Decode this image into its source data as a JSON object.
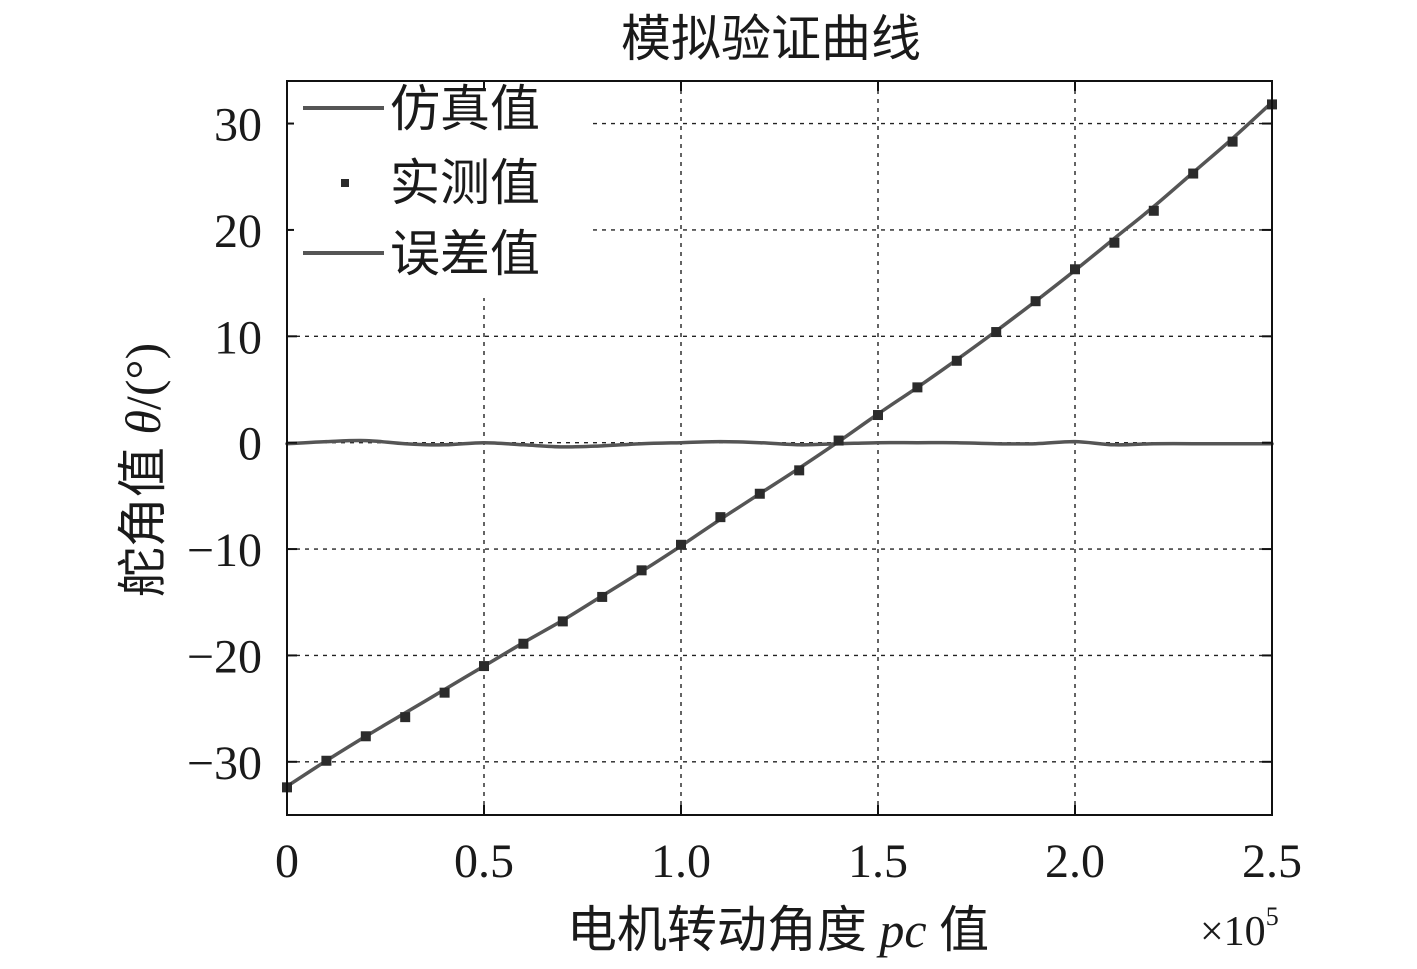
{
  "chart_data": {
    "type": "line",
    "title": "模拟验证曲线",
    "xlabel": {
      "prefix": "电机转动角度 ",
      "italic": "pc",
      "suffix": " 值"
    },
    "ylabel": {
      "prefix": "舵角值 ",
      "italic": "θ",
      "suffix": "/(°)"
    },
    "x_multiplier": {
      "base": "×10",
      "exponent": "5"
    },
    "xlim": [
      0,
      2.5
    ],
    "ylim": [
      -35,
      34
    ],
    "x_ticks": [
      0,
      0.5,
      1.0,
      1.5,
      2.0,
      2.5
    ],
    "x_tick_labels": [
      "0",
      "0.5",
      "1.0",
      "1.5",
      "2.0",
      "2.5"
    ],
    "y_ticks": [
      -30,
      -20,
      -10,
      0,
      10,
      20,
      30
    ],
    "y_tick_labels": [
      "−30",
      "−20",
      "−10",
      "0",
      "10",
      "20",
      "30"
    ],
    "grid": true,
    "legend_position": "top-left",
    "legend": [
      "仿真值",
      "实测值",
      "误差值"
    ],
    "colors": {
      "simulation": "#555555",
      "measured": "#2b2b2b",
      "error": "#555555",
      "grid": "#222222",
      "axis": "#111111"
    },
    "series": [
      {
        "name": "仿真值",
        "style": "line",
        "x": [
          0,
          0.1,
          0.2,
          0.3,
          0.4,
          0.5,
          0.6,
          0.7,
          0.8,
          0.9,
          1.0,
          1.1,
          1.2,
          1.3,
          1.4,
          1.5,
          1.6,
          1.7,
          1.8,
          1.9,
          2.0,
          2.1,
          2.2,
          2.3,
          2.4,
          2.5
        ],
        "y": [
          -32.3,
          -29.9,
          -27.6,
          -25.4,
          -23.2,
          -21.0,
          -18.8,
          -16.7,
          -14.4,
          -12.1,
          -9.7,
          -7.2,
          -4.8,
          -2.4,
          0.1,
          2.7,
          5.2,
          7.8,
          10.5,
          13.3,
          16.2,
          19.2,
          22.2,
          25.4,
          28.6,
          32.0
        ]
      },
      {
        "name": "实测值",
        "style": "markers",
        "x": [
          0,
          0.1,
          0.2,
          0.3,
          0.4,
          0.5,
          0.6,
          0.7,
          0.8,
          0.9,
          1.0,
          1.1,
          1.2,
          1.3,
          1.4,
          1.5,
          1.6,
          1.7,
          1.8,
          1.9,
          2.0,
          2.1,
          2.2,
          2.3,
          2.4,
          2.5
        ],
        "y": [
          -32.4,
          -29.9,
          -27.6,
          -25.8,
          -23.5,
          -21.0,
          -18.9,
          -16.8,
          -14.5,
          -12.0,
          -9.6,
          -7.0,
          -4.8,
          -2.6,
          0.2,
          2.6,
          5.2,
          7.7,
          10.4,
          13.3,
          16.3,
          18.8,
          21.8,
          25.3,
          28.3,
          31.8
        ]
      },
      {
        "name": "误差值",
        "style": "line",
        "x": [
          0,
          0.1,
          0.2,
          0.3,
          0.4,
          0.5,
          0.6,
          0.7,
          0.8,
          0.9,
          1.0,
          1.1,
          1.2,
          1.3,
          1.4,
          1.5,
          1.6,
          1.7,
          1.8,
          1.9,
          2.0,
          2.1,
          2.2,
          2.3,
          2.4,
          2.5
        ],
        "y": [
          -0.1,
          0.1,
          0.2,
          -0.1,
          -0.2,
          0.0,
          -0.2,
          -0.4,
          -0.3,
          -0.1,
          0.0,
          0.1,
          0.0,
          -0.2,
          -0.1,
          0.0,
          0.0,
          0.0,
          -0.1,
          -0.1,
          0.1,
          -0.2,
          -0.1,
          -0.1,
          -0.1,
          -0.1
        ]
      }
    ]
  }
}
